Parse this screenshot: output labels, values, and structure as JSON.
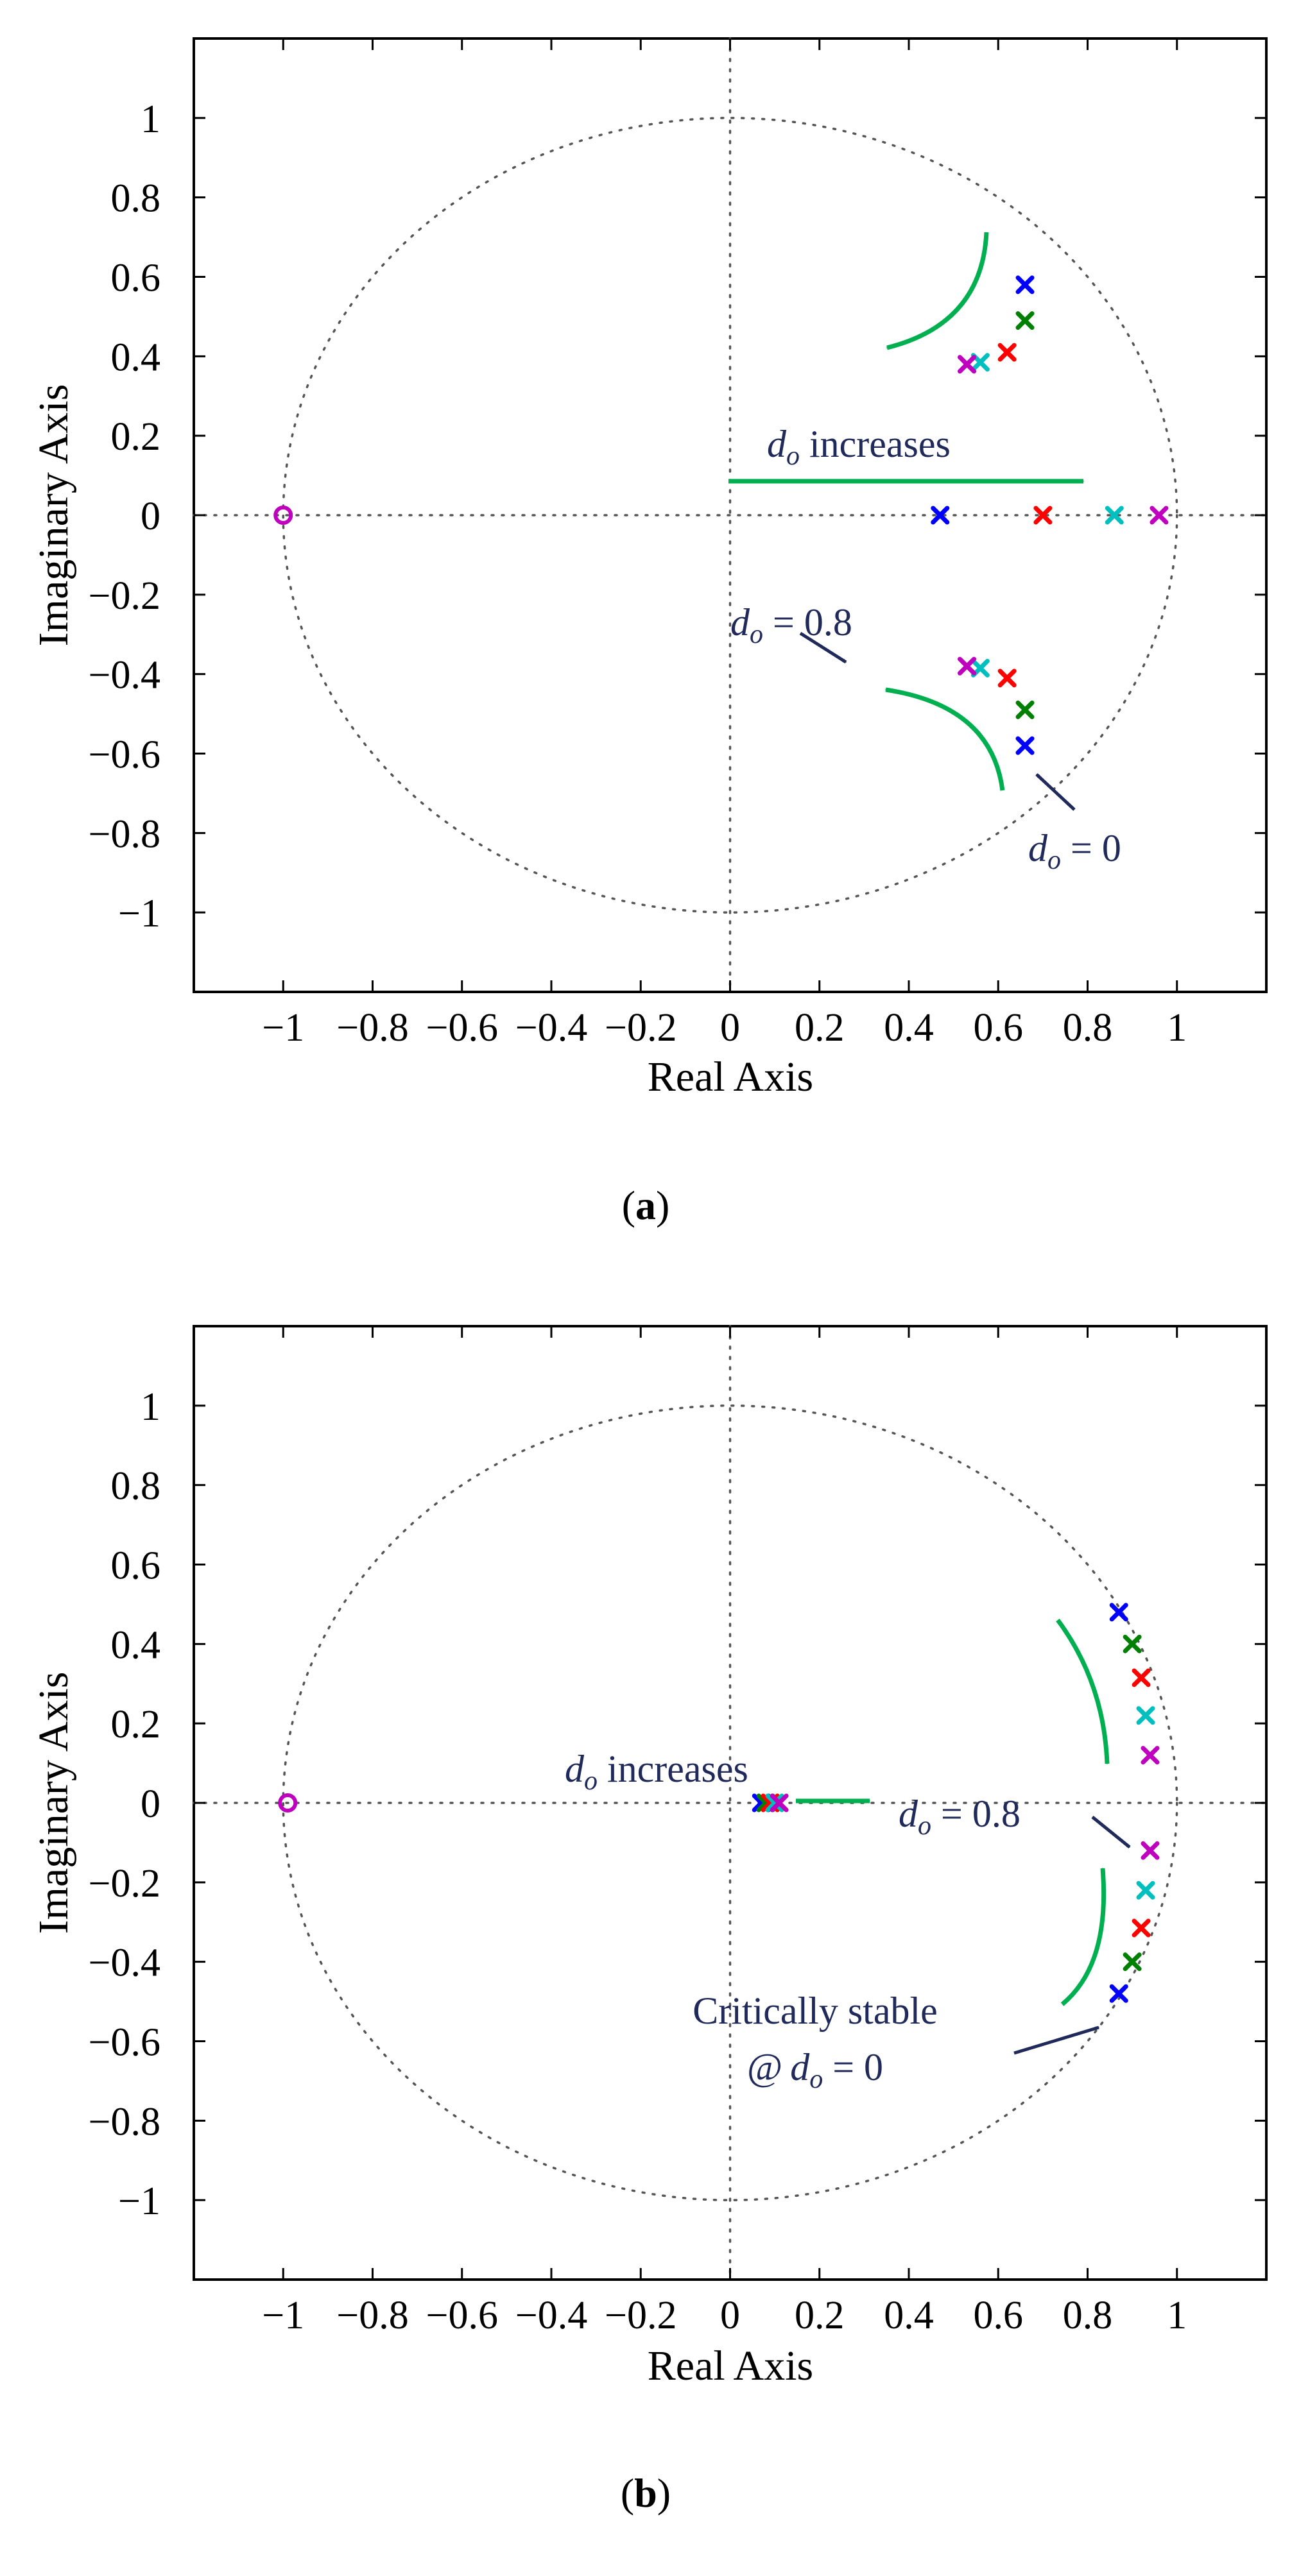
{
  "chart_data": [
    {
      "type": "scatter",
      "panel": "a",
      "caption": "(a)",
      "caption_letter": "a",
      "xlabel": "Real Axis",
      "ylabel": "Imaginary Axis",
      "xlim": [
        -1.2,
        1.2
      ],
      "ylim": [
        -1.2,
        1.2
      ],
      "xticks": [
        -1,
        -0.8,
        -0.6,
        -0.4,
        -0.2,
        0,
        0.2,
        0.4,
        0.6,
        0.8,
        1
      ],
      "xtick_labels": [
        "−1",
        "−0.8",
        "−0.6",
        "−0.4",
        "−0.2",
        "0",
        "0.2",
        "0.4",
        "0.6",
        "0.8",
        "1"
      ],
      "yticks": [
        1,
        0.8,
        0.6,
        0.4,
        0.2,
        0,
        -0.2,
        -0.4,
        -0.6,
        -0.8,
        -1
      ],
      "ytick_labels": [
        "1",
        "0.8",
        "0.6",
        "0.4",
        "0.2",
        "0",
        "−0.2",
        "−0.4",
        "−0.6",
        "−0.8",
        "−1"
      ],
      "unit_circle": true,
      "zero_axes": true,
      "colors": [
        "#0000ff",
        "#008000",
        "#ff0000",
        "#00bfbf",
        "#bf00bf"
      ],
      "zeros": [
        {
          "x": -1.0,
          "y": 0.0,
          "color": "#bf00bf"
        }
      ],
      "poles": [
        {
          "color": "#0000ff",
          "points": [
            [
              0.66,
              0.58
            ],
            [
              0.66,
              -0.58
            ],
            [
              0.47,
              0.0
            ]
          ]
        },
        {
          "color": "#008000",
          "points": [
            [
              0.66,
              0.49
            ],
            [
              0.66,
              -0.49
            ]
          ]
        },
        {
          "color": "#ff0000",
          "points": [
            [
              0.62,
              0.41
            ],
            [
              0.62,
              -0.41
            ],
            [
              0.7,
              0.0
            ]
          ]
        },
        {
          "color": "#00bfbf",
          "points": [
            [
              0.56,
              0.385
            ],
            [
              0.56,
              -0.385
            ],
            [
              0.86,
              0.0
            ]
          ]
        },
        {
          "color": "#bf00bf",
          "points": [
            [
              0.53,
              0.38
            ],
            [
              0.53,
              -0.38
            ],
            [
              0.96,
              0.0
            ]
          ]
        }
      ],
      "annotations": {
        "increases": {
          "d": "d",
          "sub": "o",
          "rest": " increases"
        },
        "d08": {
          "d": "d",
          "sub": "o",
          "rest": " = 0.8"
        },
        "d0": {
          "d": "d",
          "sub": "o",
          "rest": " = 0"
        }
      }
    },
    {
      "type": "scatter",
      "panel": "b",
      "caption": "(b)",
      "caption_letter": "b",
      "xlabel": "Real Axis",
      "ylabel": "Imaginary Axis",
      "xlim": [
        -1.2,
        1.2
      ],
      "ylim": [
        -1.2,
        1.2
      ],
      "xticks": [
        -1,
        -0.8,
        -0.6,
        -0.4,
        -0.2,
        0,
        0.2,
        0.4,
        0.6,
        0.8,
        1
      ],
      "xtick_labels": [
        "−1",
        "−0.8",
        "−0.6",
        "−0.4",
        "−0.2",
        "0",
        "0.2",
        "0.4",
        "0.6",
        "0.8",
        "1"
      ],
      "yticks": [
        1,
        0.8,
        0.6,
        0.4,
        0.2,
        0,
        -0.2,
        -0.4,
        -0.6,
        -0.8,
        -1
      ],
      "ytick_labels": [
        "1",
        "0.8",
        "0.6",
        "0.4",
        "0.2",
        "0",
        "−0.2",
        "−0.4",
        "−0.6",
        "−0.8",
        "−1"
      ],
      "unit_circle": true,
      "zero_axes": true,
      "colors": [
        "#0000ff",
        "#008000",
        "#ff0000",
        "#00bfbf",
        "#bf00bf"
      ],
      "zeros": [
        {
          "x": -0.99,
          "y": 0.0,
          "color": "#bf00bf"
        }
      ],
      "poles": [
        {
          "color": "#0000ff",
          "points": [
            [
              0.87,
              0.48
            ],
            [
              0.87,
              -0.48
            ],
            [
              0.07,
              0.0
            ]
          ]
        },
        {
          "color": "#008000",
          "points": [
            [
              0.9,
              0.4
            ],
            [
              0.9,
              -0.4
            ],
            [
              0.08,
              0.0
            ]
          ]
        },
        {
          "color": "#ff0000",
          "points": [
            [
              0.92,
              0.315
            ],
            [
              0.92,
              -0.315
            ],
            [
              0.09,
              0.0
            ]
          ]
        },
        {
          "color": "#00bfbf",
          "points": [
            [
              0.93,
              0.22
            ],
            [
              0.93,
              -0.22
            ],
            [
              0.1,
              0.0
            ]
          ]
        },
        {
          "color": "#bf00bf",
          "points": [
            [
              0.94,
              0.12
            ],
            [
              0.94,
              -0.12
            ],
            [
              0.11,
              0.0
            ]
          ]
        }
      ],
      "annotations": {
        "increases": {
          "d": "d",
          "sub": "o",
          "rest": " increases"
        },
        "d08": {
          "d": "d",
          "sub": "o",
          "rest": " = 0.8"
        },
        "crit1": "Critically stable",
        "crit2": {
          "at": "@",
          "d": "d",
          "sub": "o",
          "rest": " = 0"
        }
      }
    }
  ]
}
